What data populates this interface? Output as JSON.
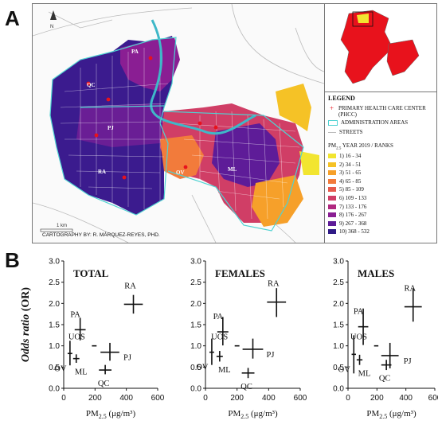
{
  "panels": {
    "a": "A",
    "b": "B"
  },
  "map": {
    "north": "N",
    "districts": [
      "PA",
      "QC",
      "PJ",
      "RA",
      "OV",
      "ML"
    ],
    "scale_label": "1 km",
    "credit": "CARTOGRAPHY BY: R. MÁRQUEZ-REYES, PHD.",
    "legend": {
      "title": "LEGEND",
      "phcc": "PRIMARY HEALTH CARE CENTER (PHCC)",
      "admin": "ADMINISTRATION AREAS",
      "streets": "STREETS",
      "pm_title_pre": "PM",
      "pm_title_sub": "2.5",
      "pm_title_post": " YEAR 2019 / RANKS",
      "ranks": [
        {
          "label": "1) 16 - 34",
          "color": "#f2e530"
        },
        {
          "label": "2) 34 - 51",
          "color": "#f5c226"
        },
        {
          "label": "3) 51 - 65",
          "color": "#f6a02a"
        },
        {
          "label": "4) 65 - 85",
          "color": "#f27b3b"
        },
        {
          "label": "5) 85 - 109",
          "color": "#e65a4c"
        },
        {
          "label": "6) 109 - 133",
          "color": "#d03e66"
        },
        {
          "label": "7) 133 - 176",
          "color": "#b0287f"
        },
        {
          "label": "8) 176 - 267",
          "color": "#8a1e93"
        },
        {
          "label": "9) 267 - 368",
          "color": "#5e1c98"
        },
        {
          "label": "10) 368 - 532",
          "color": "#2f1a86"
        }
      ]
    }
  },
  "chart_data": [
    {
      "type": "scatter",
      "title": "TOTAL",
      "ylabel": "Odds ratio (OR)",
      "xlabel": "PM2.5 (μg/m³)",
      "xlim": [
        0,
        600
      ],
      "ylim": [
        0,
        3
      ],
      "xticks": [
        "0",
        "200",
        "400",
        "600"
      ],
      "yticks": [
        "0.0",
        "0.5",
        "1.0",
        "1.5",
        "2.0",
        "2.5",
        "3.0"
      ],
      "points": [
        {
          "label": "OV",
          "x": 40,
          "y": 0.82,
          "xerr": [
            15,
            15
          ],
          "yerr": [
            0.28,
            0.3
          ]
        },
        {
          "label": "ML",
          "x": 80,
          "y": 0.7,
          "xerr": [
            20,
            20
          ],
          "yerr": [
            0.1,
            0.1
          ]
        },
        {
          "label": "PA",
          "x": 105,
          "y": 1.38,
          "xerr": [
            35,
            35
          ],
          "yerr": [
            0.25,
            0.28
          ]
        },
        {
          "label": "UOS",
          "x": 195,
          "y": 1.0,
          "xerr": [
            15,
            15
          ],
          "yerr": [
            0,
            0
          ]
        },
        {
          "label": "PJ",
          "x": 295,
          "y": 0.85,
          "xerr": [
            60,
            60
          ],
          "yerr": [
            0.2,
            0.22
          ]
        },
        {
          "label": "QC",
          "x": 265,
          "y": 0.43,
          "xerr": [
            40,
            40
          ],
          "yerr": [
            0.1,
            0.12
          ]
        },
        {
          "label": "RA",
          "x": 445,
          "y": 1.98,
          "xerr": [
            60,
            60
          ],
          "yerr": [
            0.22,
            0.22
          ]
        }
      ]
    },
    {
      "type": "scatter",
      "title": "FEMALES",
      "xlabel": "PM2.5 (μg/m³)",
      "xlim": [
        0,
        600
      ],
      "ylim": [
        0,
        3
      ],
      "xticks": [
        "0",
        "200",
        "400",
        "600"
      ],
      "yticks": [
        "0.0",
        "0.5",
        "1.0",
        "1.5",
        "2.0",
        "2.5",
        "3.0"
      ],
      "points": [
        {
          "label": "OV",
          "x": 40,
          "y": 0.85,
          "xerr": [
            15,
            15
          ],
          "yerr": [
            0.3,
            0.32
          ]
        },
        {
          "label": "ML",
          "x": 90,
          "y": 0.75,
          "xerr": [
            20,
            20
          ],
          "yerr": [
            0.12,
            0.13
          ]
        },
        {
          "label": "PA",
          "x": 110,
          "y": 1.33,
          "xerr": [
            35,
            35
          ],
          "yerr": [
            0.32,
            0.35
          ]
        },
        {
          "label": "UOS",
          "x": 200,
          "y": 1.0,
          "xerr": [
            15,
            15
          ],
          "yerr": [
            0,
            0
          ]
        },
        {
          "label": "PJ",
          "x": 300,
          "y": 0.92,
          "xerr": [
            65,
            65
          ],
          "yerr": [
            0.22,
            0.25
          ]
        },
        {
          "label": "QC",
          "x": 270,
          "y": 0.36,
          "xerr": [
            40,
            40
          ],
          "yerr": [
            0.12,
            0.12
          ]
        },
        {
          "label": "RA",
          "x": 450,
          "y": 2.03,
          "xerr": [
            60,
            60
          ],
          "yerr": [
            0.35,
            0.33
          ]
        }
      ]
    },
    {
      "type": "scatter",
      "title": "MALES",
      "xlabel": "PM2.5 (μg/m³)",
      "xlim": [
        0,
        600
      ],
      "ylim": [
        0,
        3
      ],
      "xticks": [
        "0",
        "200",
        "400",
        "600"
      ],
      "yticks": [
        "0.0",
        "0.5",
        "1.0",
        "1.5",
        "2.0",
        "2.5",
        "3.0"
      ],
      "points": [
        {
          "label": "OV",
          "x": 40,
          "y": 0.8,
          "xerr": [
            15,
            15
          ],
          "yerr": [
            0.45,
            0.45
          ]
        },
        {
          "label": "ML",
          "x": 80,
          "y": 0.67,
          "xerr": [
            20,
            20
          ],
          "yerr": [
            0.12,
            0.12
          ]
        },
        {
          "label": "PA",
          "x": 105,
          "y": 1.45,
          "xerr": [
            35,
            35
          ],
          "yerr": [
            0.43,
            0.43
          ]
        },
        {
          "label": "UOS",
          "x": 195,
          "y": 1.0,
          "xerr": [
            15,
            15
          ],
          "yerr": [
            0,
            0
          ]
        },
        {
          "label": "PJ",
          "x": 290,
          "y": 0.77,
          "xerr": [
            60,
            60
          ],
          "yerr": [
            0.3,
            0.3
          ]
        },
        {
          "label": "QC",
          "x": 265,
          "y": 0.55,
          "xerr": [
            35,
            35
          ],
          "yerr": [
            0.12,
            0.12
          ]
        },
        {
          "label": "RA",
          "x": 450,
          "y": 1.92,
          "xerr": [
            60,
            60
          ],
          "yerr": [
            0.35,
            0.43
          ]
        }
      ]
    }
  ]
}
